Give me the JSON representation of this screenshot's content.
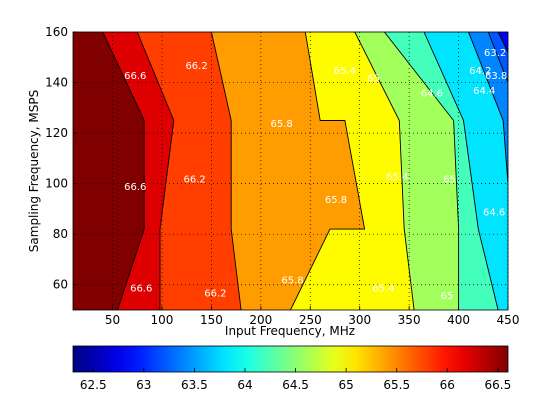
{
  "chart_data": {
    "type": "heatmap",
    "subtype": "filled-contour",
    "title": "",
    "xlabel": "Input Frequency, MHz",
    "ylabel": "Sampling Frequency, MSPS",
    "xlim": [
      10,
      450
    ],
    "ylim": [
      50,
      160
    ],
    "xticks": [
      50,
      100,
      150,
      200,
      250,
      300,
      350,
      400,
      450
    ],
    "yticks": [
      60,
      80,
      100,
      120,
      140,
      160
    ],
    "grid": true,
    "colormap": "jet",
    "clim": [
      62.3,
      66.6
    ],
    "colorbar": {
      "orientation": "horizontal",
      "position": "below",
      "ticks": [
        62.5,
        63,
        63.5,
        64,
        64.5,
        65,
        65.5,
        66,
        66.5
      ]
    },
    "levels": [
      66.6,
      66.2,
      65.8,
      65.4,
      65,
      64.6,
      64.2,
      63.8,
      63.4,
      63.2,
      62.8
    ],
    "contour_lines": [
      {
        "level": 66.6,
        "points": [
          [
            40,
            160
          ],
          [
            82,
            125
          ],
          [
            82,
            82
          ],
          [
            55,
            50
          ]
        ]
      },
      {
        "level": 66.2,
        "points": [
          [
            75,
            160
          ],
          [
            112,
            125
          ],
          [
            98,
            82
          ],
          [
            98,
            50
          ]
        ]
      },
      {
        "level": 65.8,
        "points": [
          [
            150,
            160
          ],
          [
            170,
            125
          ],
          [
            170,
            82
          ],
          [
            180,
            50
          ]
        ]
      },
      {
        "level": 65.4,
        "points": [
          [
            245,
            160
          ],
          [
            260,
            125
          ],
          [
            285,
            125
          ],
          [
            305,
            82
          ],
          [
            270,
            82
          ],
          [
            230,
            50
          ]
        ]
      },
      {
        "level": 65,
        "points": [
          [
            295,
            160
          ],
          [
            340,
            125
          ],
          [
            345,
            82
          ],
          [
            355,
            50
          ]
        ]
      },
      {
        "level": 64.6,
        "points": [
          [
            325,
            160
          ],
          [
            395,
            125
          ],
          [
            400,
            82
          ],
          [
            400,
            50
          ]
        ]
      },
      {
        "level": 64.2,
        "points": [
          [
            365,
            160
          ],
          [
            405,
            125
          ],
          [
            420,
            82
          ],
          [
            440,
            50
          ]
        ]
      },
      {
        "level": 63.8,
        "points": [
          [
            410,
            160
          ],
          [
            445,
            125
          ],
          [
            450,
            100
          ]
        ]
      },
      {
        "level": 63.4,
        "points": [
          [
            430,
            160
          ],
          [
            450,
            140
          ]
        ]
      },
      {
        "level": 63.2,
        "points": [
          [
            440,
            160
          ],
          [
            450,
            152
          ]
        ]
      }
    ],
    "labels": [
      {
        "text": "66.6",
        "x": 73,
        "y": 143
      },
      {
        "text": "66.2",
        "x": 135,
        "y": 147
      },
      {
        "text": "65.8",
        "x": 221,
        "y": 124
      },
      {
        "text": "65.4",
        "x": 285,
        "y": 145
      },
      {
        "text": "65",
        "x": 314,
        "y": 142
      },
      {
        "text": "64.6",
        "x": 373,
        "y": 136
      },
      {
        "text": "64.2",
        "x": 422,
        "y": 145
      },
      {
        "text": "64.4",
        "x": 426,
        "y": 137
      },
      {
        "text": "63.8",
        "x": 438,
        "y": 143
      },
      {
        "text": "63.2",
        "x": 437,
        "y": 152
      },
      {
        "text": "66.6",
        "x": 73,
        "y": 99
      },
      {
        "text": "66.2",
        "x": 133,
        "y": 102
      },
      {
        "text": "65.8",
        "x": 276,
        "y": 94
      },
      {
        "text": "65.4",
        "x": 338,
        "y": 103
      },
      {
        "text": "65",
        "x": 391,
        "y": 102
      },
      {
        "text": "64.6",
        "x": 436,
        "y": 89
      },
      {
        "text": "66.6",
        "x": 79,
        "y": 59
      },
      {
        "text": "66.2",
        "x": 154,
        "y": 57
      },
      {
        "text": "65.8",
        "x": 232,
        "y": 62
      },
      {
        "text": "65.4",
        "x": 324,
        "y": 59
      },
      {
        "text": "65",
        "x": 388,
        "y": 56
      }
    ]
  }
}
